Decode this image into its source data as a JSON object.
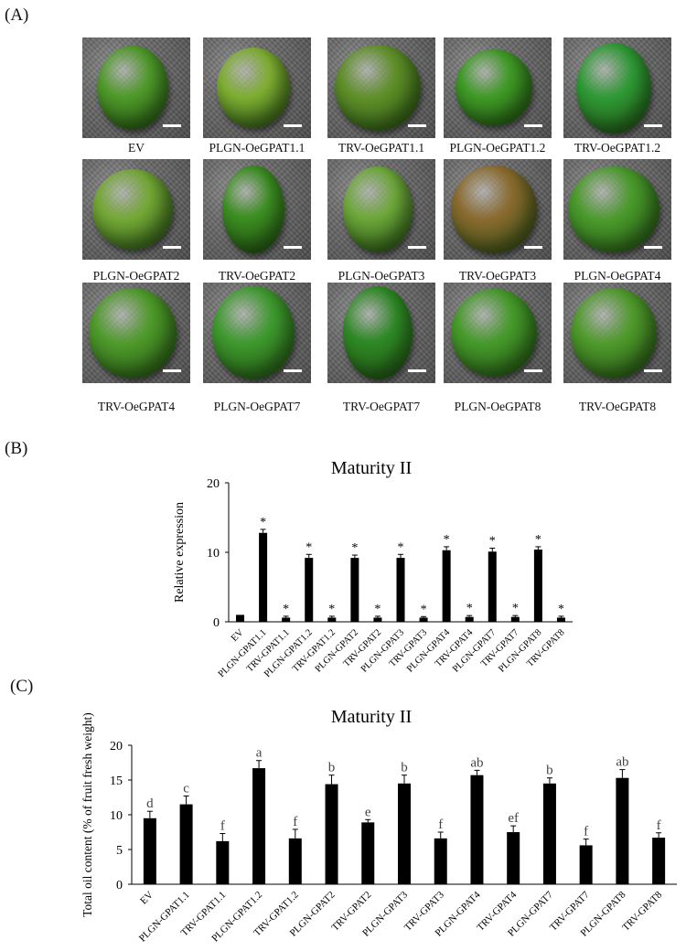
{
  "panel_labels": {
    "a": "(A)",
    "b": "(B)",
    "c": "(C)"
  },
  "fruit_panels": [
    {
      "label": "EV",
      "color": "#4f9a2a"
    },
    {
      "label": "PLGN-OeGPAT1.1",
      "color": "#7fae32"
    },
    {
      "label": "TRV-OeGPAT1.1",
      "color": "#5f8f28"
    },
    {
      "label": "PLGN-OeGPAT1.2",
      "color": "#3f9a26"
    },
    {
      "label": "TRV-OeGPAT1.2",
      "color": "#2f9a35"
    },
    {
      "label": "PLGN-OeGPAT2",
      "color": "#74a836"
    },
    {
      "label": "TRV-OeGPAT2",
      "color": "#3c8f22"
    },
    {
      "label": "PLGN-OeGPAT3",
      "color": "#6ea83a"
    },
    {
      "label": "TRV-OeGPAT3",
      "color": "#8a6a2e"
    },
    {
      "label": "PLGN-OeGPAT4",
      "color": "#4a9a2c"
    },
    {
      "label": "TRV-OeGPAT4",
      "color": "#4e9a2a"
    },
    {
      "label": "PLGN-OeGPAT7",
      "color": "#3e9a2e"
    },
    {
      "label": "TRV-OeGPAT7",
      "color": "#2f8a26"
    },
    {
      "label": "PLGN-OeGPAT8",
      "color": "#459a2a"
    },
    {
      "label": "TRV-OeGPAT8",
      "color": "#4f9a2c"
    }
  ],
  "chart_data": [
    {
      "type": "bar",
      "title": "Maturity II",
      "xlabel": "",
      "ylabel": "Relative expression",
      "ylim": [
        0,
        20
      ],
      "yticks": [
        0,
        10,
        20
      ],
      "categories": [
        "EV",
        "PLGN-GPAT1.1",
        "TRV-GPAT1.1",
        "PLGN-GPAT1.2",
        "TRV-GPAT1.2",
        "PLGN-GPAT2",
        "TRV-GPAT2",
        "PLGN-GPAT3",
        "TRV-GPAT3",
        "PLGN-GPAT4",
        "TRV-GPAT4",
        "PLGN-GPAT7",
        "TRV-GPAT7",
        "PLGN-GPAT8",
        "TRV-GPAT8"
      ],
      "values": [
        1.0,
        12.8,
        0.6,
        9.2,
        0.6,
        9.2,
        0.6,
        9.2,
        0.6,
        10.3,
        0.7,
        10.1,
        0.7,
        10.4,
        0.6
      ],
      "errors": [
        0.0,
        0.5,
        0.2,
        0.5,
        0.2,
        0.4,
        0.2,
        0.5,
        0.15,
        0.5,
        0.2,
        0.5,
        0.2,
        0.4,
        0.2
      ],
      "annotations": [
        "",
        "*",
        "*",
        "*",
        "*",
        "*",
        "*",
        "*",
        "*",
        "*",
        "*",
        "*",
        "*",
        "*",
        "*"
      ],
      "bar_color": "#000000"
    },
    {
      "type": "bar",
      "title": "Maturity II",
      "xlabel": "",
      "ylabel": "Total oil content (% of fruit fresh weight)",
      "ylim": [
        0,
        20
      ],
      "yticks": [
        0,
        5,
        10,
        15,
        20
      ],
      "categories": [
        "EV",
        "PLGN-GPAT1.1",
        "TRV-GPAT1.1",
        "PLGN-GPAT1.2",
        "TRV-GPAT1.2",
        "PLGN-GPAT2",
        "TRV-GPAT2",
        "PLGN-GPAT3",
        "TRV-GPAT3",
        "PLGN-GPAT4",
        "TRV-GPAT4",
        "PLGN-GPAT7",
        "TRV-GPAT7",
        "PLGN-GPAT8",
        "TRV-GPAT8"
      ],
      "values": [
        9.5,
        11.5,
        6.2,
        16.7,
        6.6,
        14.4,
        8.9,
        14.5,
        6.6,
        15.7,
        7.5,
        14.5,
        5.6,
        15.3,
        6.7
      ],
      "errors": [
        1.0,
        1.2,
        1.1,
        1.1,
        1.3,
        1.3,
        0.4,
        1.2,
        0.9,
        0.7,
        0.9,
        0.8,
        0.9,
        1.2,
        0.7
      ],
      "annotations": [
        "d",
        "c",
        "f",
        "a",
        "f",
        "b",
        "e",
        "b",
        "f",
        "ab",
        "ef",
        "b",
        "f",
        "ab",
        "f"
      ],
      "bar_color": "#000000"
    }
  ]
}
